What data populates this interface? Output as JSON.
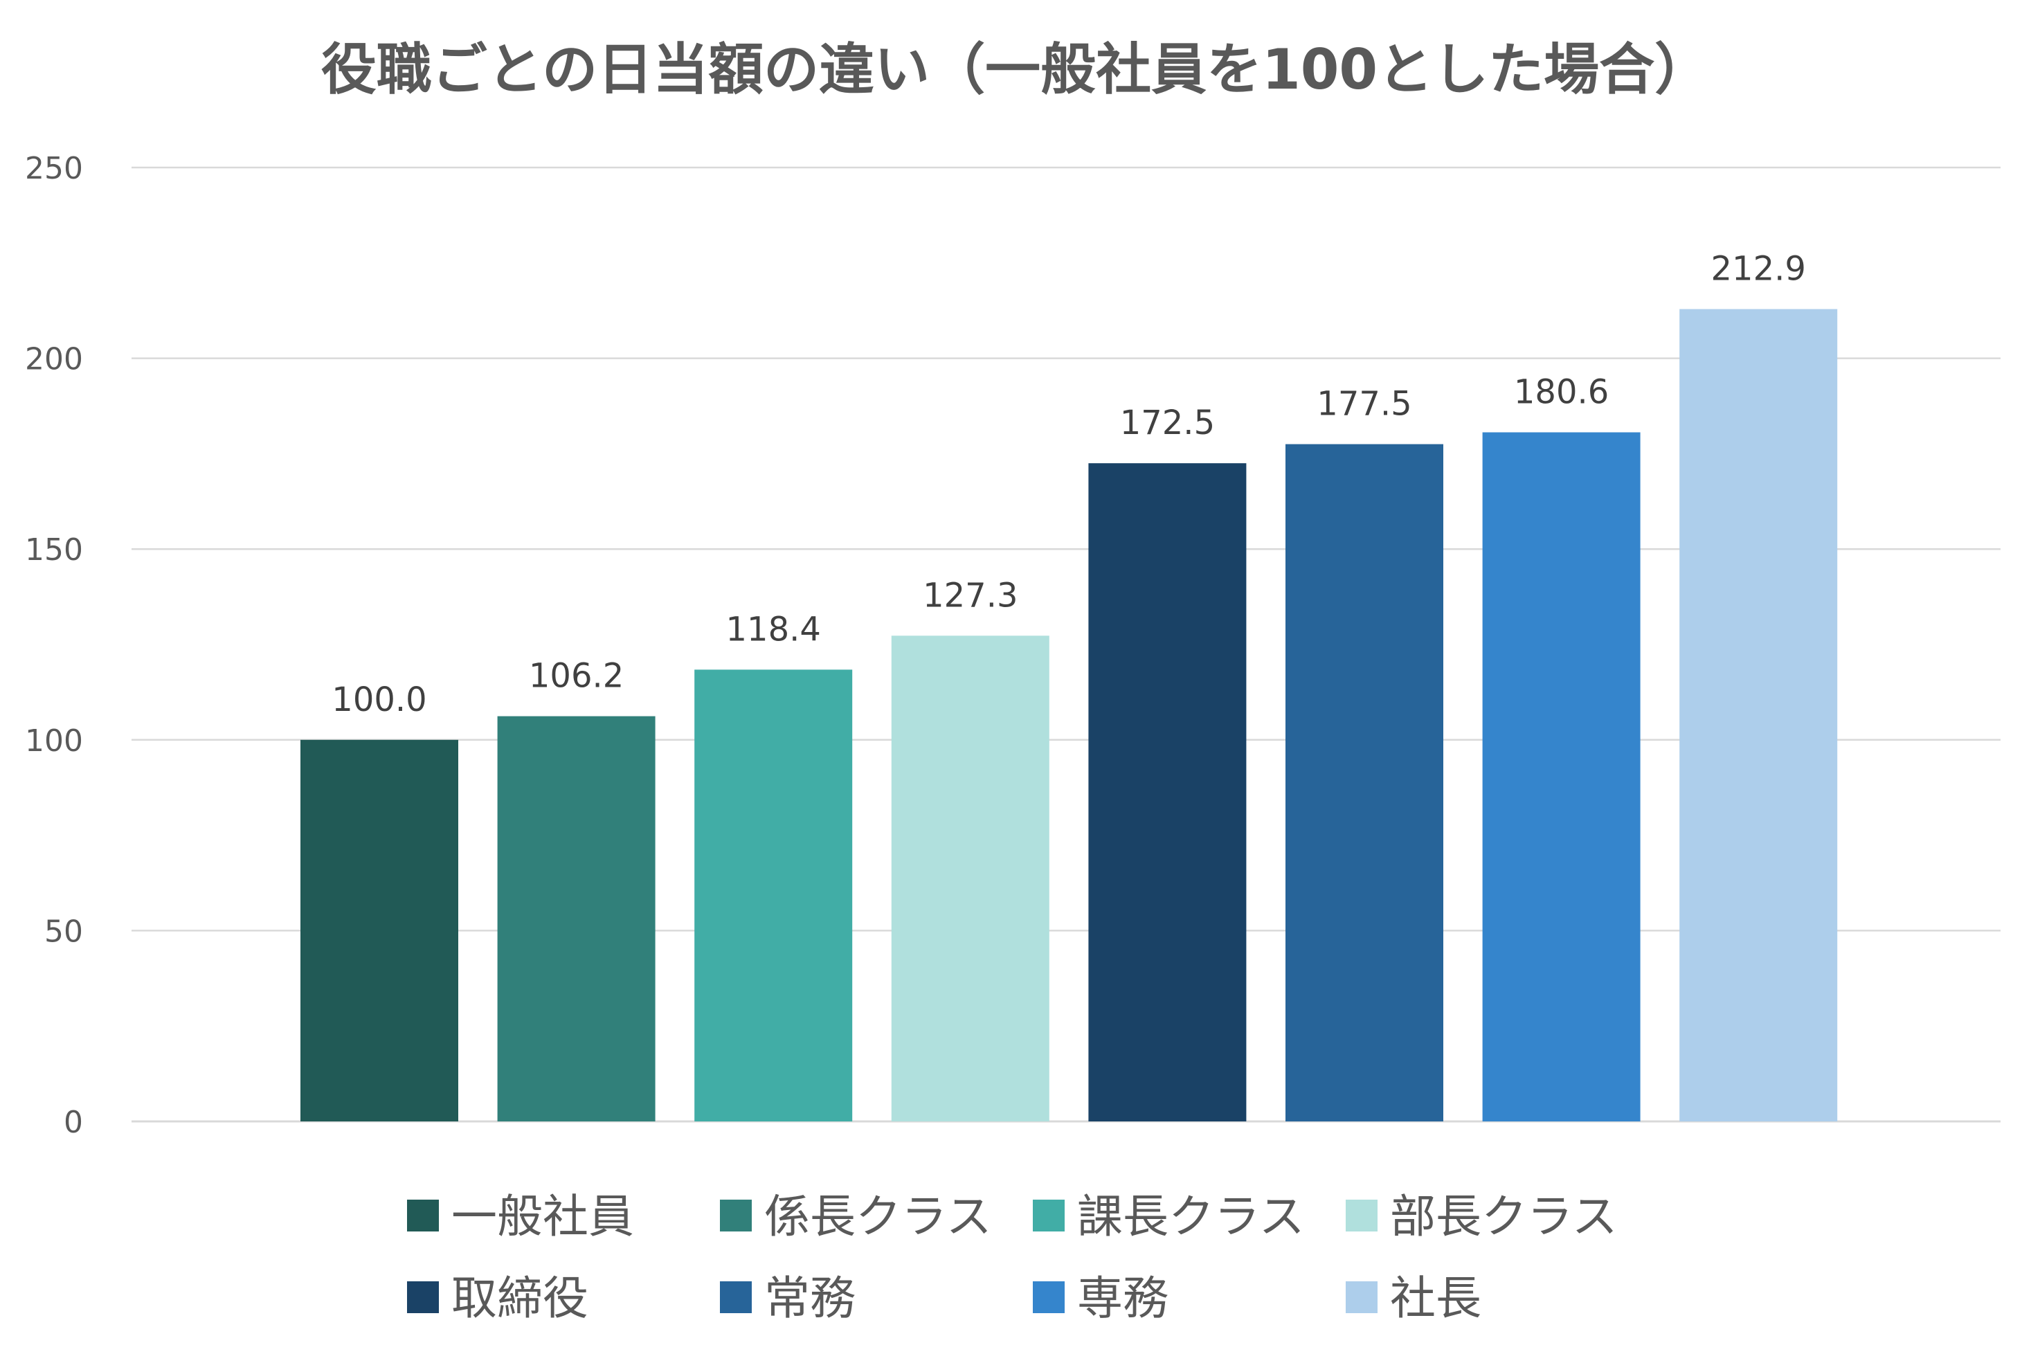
{
  "chart_data": {
    "type": "bar",
    "title": "役職ごとの日当額の違い（一般社員を100とした場合）",
    "xlabel": "",
    "ylabel": "",
    "ylim": [
      0,
      250
    ],
    "yticks": [
      0,
      50,
      100,
      150,
      200,
      250
    ],
    "grid": true,
    "legend_position": "bottom",
    "categories": [
      "一般社員",
      "係長クラス",
      "課長クラス",
      "部長クラス",
      "取締役",
      "常務",
      "専務",
      "社長"
    ],
    "series": [
      {
        "name": "一般社員",
        "value": 100.0,
        "label": "100.0",
        "color": "#215A56"
      },
      {
        "name": "係長クラス",
        "value": 106.2,
        "label": "106.2",
        "color": "#31807A"
      },
      {
        "name": "課長クラス",
        "value": 118.4,
        "label": "118.4",
        "color": "#41ADA6"
      },
      {
        "name": "部長クラス",
        "value": 127.3,
        "label": "127.3",
        "color": "#B0E0DD"
      },
      {
        "name": "取締役",
        "value": 172.5,
        "label": "172.5",
        "color": "#1A4266"
      },
      {
        "name": "常務",
        "value": 177.5,
        "label": "177.5",
        "color": "#276499"
      },
      {
        "name": "専務",
        "value": 180.6,
        "label": "180.6",
        "color": "#3585CC"
      },
      {
        "name": "社長",
        "value": 212.9,
        "label": "212.9",
        "color": "#ADCEEB"
      }
    ]
  }
}
